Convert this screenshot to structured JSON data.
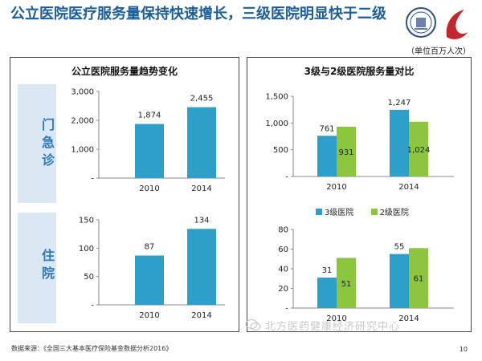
{
  "header": {
    "title": "公立医院医疗服务量保持快速增长，三级医院明显快于二级",
    "unit_note": "（单位百万人次）"
  },
  "left_panel": {
    "title": "公立医院服务量趋势变化",
    "side_labels": [
      "门急诊",
      "住院"
    ]
  },
  "right_panel": {
    "title": "3级与2级医院服务量对比",
    "legend": [
      "3级医院",
      "2级医院"
    ]
  },
  "colors": {
    "title": "#1a5d9a",
    "bar_blue": "#2e9fc8",
    "bar_green": "#8cc63f",
    "side_bar": "#dbe7f3",
    "axis": "#888888"
  },
  "footer": {
    "source": "数据来源：《全国三大基本医疗保险基金数据分析2016》",
    "page": "10",
    "watermark": "北方医药健康经济研究中心"
  },
  "chart_data": [
    {
      "id": "outpatient_total",
      "type": "bar",
      "categories": [
        "2010",
        "2014"
      ],
      "series": [
        {
          "name": "公立医院",
          "values": [
            1874,
            2455
          ]
        }
      ],
      "value_labels": [
        "1,874",
        "2,455"
      ],
      "ylim": [
        0,
        3000
      ],
      "yticks": [
        0,
        1000,
        2000,
        3000
      ],
      "ytick_labels": [
        "-",
        "1,000",
        "2,000",
        "3,000"
      ]
    },
    {
      "id": "inpatient_total",
      "type": "bar",
      "categories": [
        "2010",
        "2014"
      ],
      "series": [
        {
          "name": "公立医院",
          "values": [
            87,
            134
          ]
        }
      ],
      "value_labels": [
        "87",
        "134"
      ],
      "ylim": [
        0,
        150
      ],
      "yticks": [
        0,
        50,
        100,
        150
      ],
      "ytick_labels": [
        "-",
        "50",
        "100",
        "150"
      ]
    },
    {
      "id": "outpatient_by_level",
      "type": "bar",
      "categories": [
        "2010",
        "2014"
      ],
      "series": [
        {
          "name": "3级医院",
          "values": [
            761,
            1247
          ],
          "labels": [
            "761",
            "1,247"
          ]
        },
        {
          "name": "2级医院",
          "values": [
            931,
            1024
          ],
          "labels": [
            "931",
            "1,024"
          ]
        }
      ],
      "ylim": [
        0,
        1500
      ],
      "yticks": [
        0,
        500,
        1000,
        1500
      ],
      "ytick_labels": [
        "-",
        "500",
        "1,000",
        "1,500"
      ]
    },
    {
      "id": "inpatient_by_level",
      "type": "bar",
      "categories": [
        "2010",
        "2014"
      ],
      "series": [
        {
          "name": "3级医院",
          "values": [
            31,
            55
          ],
          "labels": [
            "31",
            "55"
          ]
        },
        {
          "name": "2级医院",
          "values": [
            51,
            61
          ],
          "labels": [
            "51",
            "61"
          ]
        }
      ],
      "ylim": [
        0,
        80
      ],
      "yticks": [
        0,
        20,
        40,
        60,
        80
      ],
      "ytick_labels": [
        "-",
        "20",
        "40",
        "60",
        "80"
      ]
    }
  ]
}
